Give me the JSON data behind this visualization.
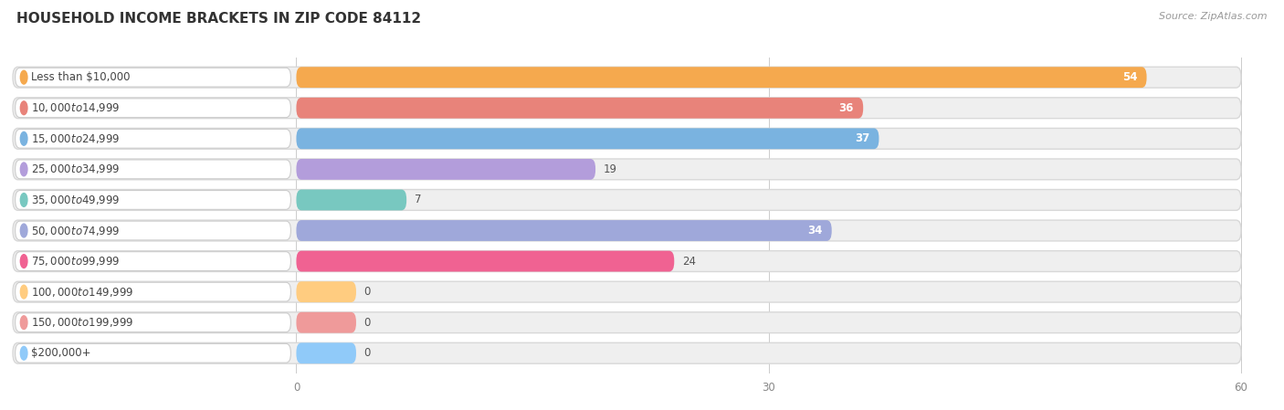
{
  "title": "HOUSEHOLD INCOME BRACKETS IN ZIP CODE 84112",
  "source": "Source: ZipAtlas.com",
  "categories": [
    "Less than $10,000",
    "$10,000 to $14,999",
    "$15,000 to $24,999",
    "$25,000 to $34,999",
    "$35,000 to $49,999",
    "$50,000 to $74,999",
    "$75,000 to $99,999",
    "$100,000 to $149,999",
    "$150,000 to $199,999",
    "$200,000+"
  ],
  "values": [
    54,
    36,
    37,
    19,
    7,
    34,
    24,
    0,
    0,
    0
  ],
  "colors": [
    "#F5A94E",
    "#E8837A",
    "#7AB3E0",
    "#B39DDB",
    "#78C8C0",
    "#9FA8DA",
    "#F06292",
    "#FFCC80",
    "#EF9A9A",
    "#90CAF9"
  ],
  "xlim_data": [
    0,
    60
  ],
  "xticks": [
    0,
    30,
    60
  ],
  "background_color": "#ffffff",
  "bar_bg_color": "#efefef",
  "title_fontsize": 11,
  "label_fontsize": 8.5,
  "value_fontsize": 8.5,
  "source_fontsize": 8,
  "value_threshold_inside": 30
}
